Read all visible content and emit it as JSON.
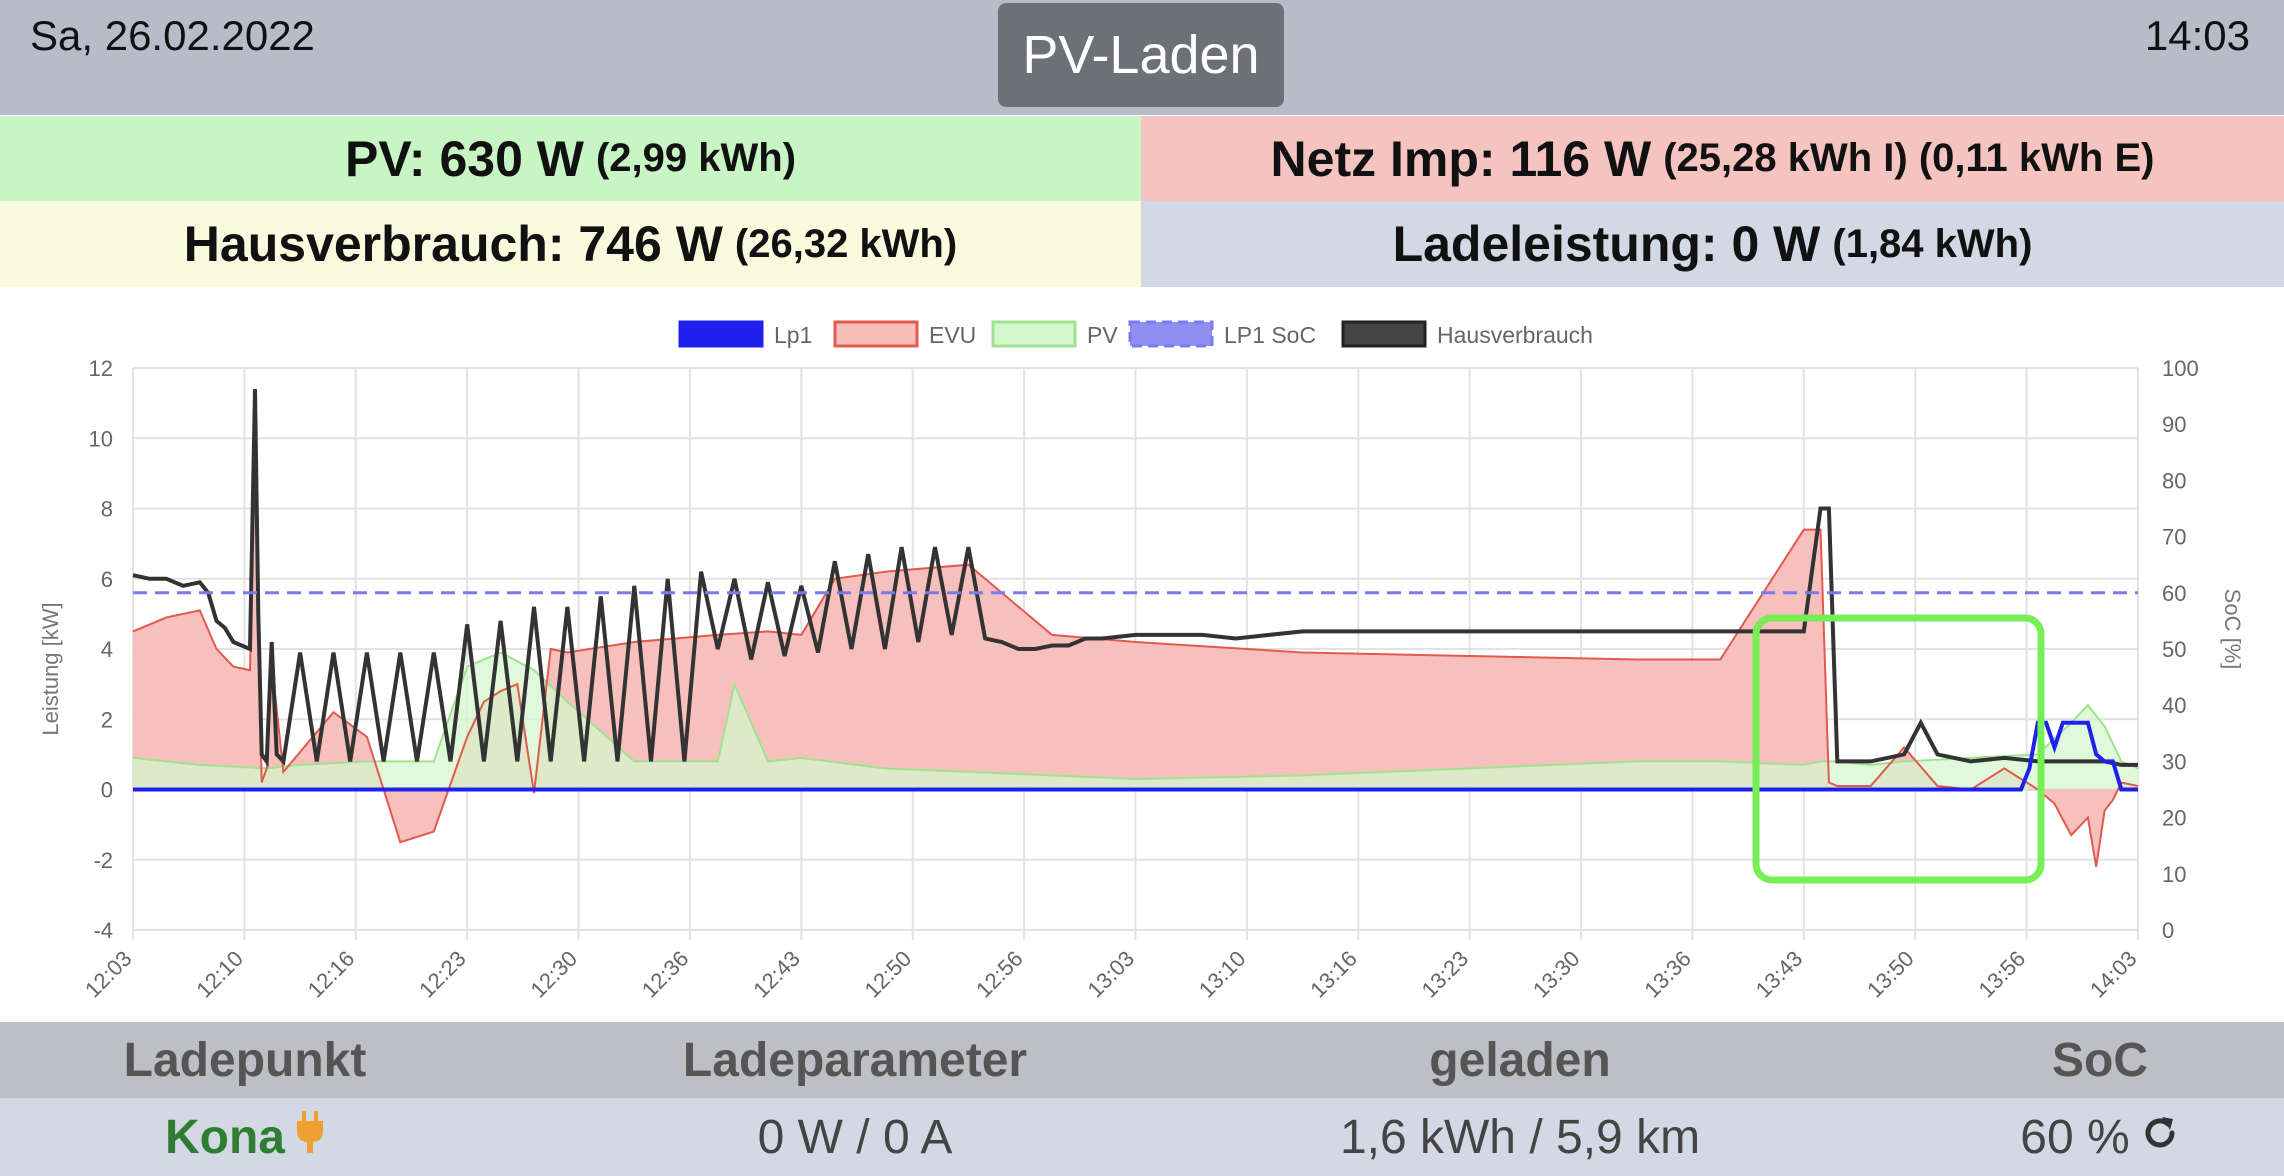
{
  "header": {
    "date": "Sa, 26.02.2022",
    "time": "14:03",
    "mode_button": "PV-Laden"
  },
  "info": {
    "pv_main": "PV: 630 W",
    "pv_sub": "(2,99 kWh)",
    "grid_main": "Netz Imp: 116 W",
    "grid_sub": "(25,28 kWh I) (0,11 kWh E)",
    "house_main": "Hausverbrauch: 746 W",
    "house_sub": "(26,32 kWh)",
    "charge_main": "Ladeleistung: 0 W",
    "charge_sub": "(1,84 kWh)"
  },
  "colors": {
    "lp1": "#2020ee",
    "evu": "#e05a4e",
    "evu_fill": "#f7bdb8",
    "pv": "#9fe38f",
    "pv_fill": "#d4f7cd",
    "soc": "#7a7af0",
    "house": "#333333",
    "highlight": "#77ee55"
  },
  "chart_data": {
    "type": "line",
    "legend": [
      "Lp1",
      "EVU",
      "PV",
      "LP1 SoC",
      "Hausverbrauch"
    ],
    "legend_position": "top",
    "ylabel": "Leistung [kW]",
    "y2label": "SoC [%]",
    "ylim": [
      -4,
      12
    ],
    "y_ticks": [
      -4,
      -2,
      0,
      2,
      4,
      6,
      8,
      10,
      12
    ],
    "y2lim": [
      0,
      100
    ],
    "y2_ticks": [
      0,
      10,
      20,
      30,
      40,
      50,
      60,
      70,
      80,
      90,
      100
    ],
    "x_ticks": [
      "12:03",
      "12:10",
      "12:16",
      "12:23",
      "12:30",
      "12:36",
      "12:43",
      "12:50",
      "12:56",
      "13:03",
      "13:10",
      "13:16",
      "13:23",
      "13:30",
      "13:36",
      "13:43",
      "13:50",
      "13:56",
      "14:03"
    ],
    "x_range_min": [
      0,
      120
    ],
    "grid": true,
    "series": [
      {
        "name": "Hausverbrauch",
        "x": [
          0,
          1,
          2,
          3,
          4,
          4.5,
          5,
          5.5,
          6,
          7,
          7.3,
          7.5,
          7.7,
          8,
          8.3,
          8.6,
          9,
          10,
          11,
          12,
          13,
          14,
          15,
          16,
          17,
          18,
          19,
          20,
          21,
          22,
          23,
          24,
          25,
          26,
          27,
          28,
          29,
          30,
          31,
          32,
          33,
          34,
          35,
          36,
          37,
          38,
          39,
          40,
          41,
          42,
          43,
          44,
          45,
          46,
          47,
          48,
          49,
          50,
          51,
          52,
          53,
          54,
          55,
          56,
          57,
          58,
          60,
          62,
          64,
          66,
          68,
          70,
          75,
          80,
          85,
          90,
          95,
          100,
          101,
          101.5,
          102,
          103,
          104,
          105,
          106,
          107,
          108,
          110,
          112,
          114,
          116,
          118,
          119,
          120
        ],
        "y": [
          6.1,
          6.0,
          6.0,
          5.8,
          5.9,
          5.6,
          4.8,
          4.6,
          4.2,
          4.0,
          11.4,
          5.0,
          1.0,
          0.8,
          4.2,
          1.0,
          0.8,
          3.9,
          0.8,
          3.9,
          0.8,
          3.9,
          0.8,
          3.9,
          0.8,
          3.9,
          0.8,
          4.7,
          0.8,
          4.8,
          0.8,
          5.2,
          0.8,
          5.2,
          0.8,
          5.5,
          0.8,
          5.8,
          0.8,
          6.0,
          0.8,
          6.2,
          4.0,
          6.0,
          3.7,
          5.9,
          3.8,
          5.8,
          3.9,
          6.5,
          4.0,
          6.7,
          4.0,
          6.9,
          4.2,
          6.9,
          4.4,
          6.9,
          4.3,
          4.2,
          4.0,
          4.0,
          4.1,
          4.1,
          4.3,
          4.3,
          4.4,
          4.4,
          4.4,
          4.3,
          4.4,
          4.5,
          4.5,
          4.5,
          4.5,
          4.5,
          4.5,
          4.5,
          8.0,
          8.0,
          0.8,
          0.8,
          0.8,
          0.9,
          1.0,
          1.9,
          1.0,
          0.8,
          0.9,
          0.8,
          0.8,
          0.8,
          0.7,
          0.7
        ]
      },
      {
        "name": "EVU",
        "x": [
          0,
          2,
          4,
          5,
          6,
          7,
          7.3,
          7.5,
          7.7,
          8,
          8.3,
          9,
          12,
          14,
          16,
          18,
          20,
          21,
          22,
          23,
          24,
          25,
          26,
          30,
          35,
          38,
          40,
          42,
          45,
          50,
          55,
          60,
          70,
          80,
          90,
          95,
          100,
          101,
          101.5,
          102,
          104,
          106,
          108,
          110,
          112,
          114,
          115,
          116,
          117,
          117.5,
          118,
          118.5,
          119,
          120
        ],
        "y": [
          4.5,
          4.9,
          5.1,
          4.0,
          3.5,
          3.4,
          10.6,
          4.5,
          0.2,
          0.6,
          3.6,
          0.5,
          2.2,
          1.5,
          -1.5,
          -1.2,
          1.5,
          2.5,
          2.8,
          3.0,
          -0.1,
          4.0,
          3.9,
          4.2,
          4.4,
          4.5,
          4.4,
          6.0,
          6.2,
          6.4,
          4.4,
          4.2,
          3.9,
          3.8,
          3.7,
          3.7,
          7.4,
          7.4,
          0.2,
          0.1,
          0.1,
          1.2,
          0.1,
          0.0,
          0.6,
          0.0,
          -0.4,
          -1.3,
          -0.8,
          -2.2,
          -0.6,
          -0.3,
          0.2,
          0.1
        ]
      },
      {
        "name": "PV",
        "x": [
          0,
          4,
          8,
          10,
          14,
          18,
          20,
          22,
          24,
          26,
          30,
          35,
          36,
          38,
          40,
          45,
          50,
          60,
          70,
          80,
          90,
          95,
          100,
          101,
          102,
          104,
          106,
          110,
          114,
          116,
          117,
          118,
          119,
          120
        ],
        "y": [
          0.9,
          0.7,
          0.6,
          0.7,
          0.8,
          0.8,
          3.5,
          3.9,
          3.4,
          2.5,
          0.8,
          0.8,
          3.0,
          0.8,
          0.9,
          0.6,
          0.5,
          0.3,
          0.4,
          0.6,
          0.8,
          0.8,
          0.7,
          0.8,
          0.8,
          0.7,
          0.8,
          0.9,
          1.0,
          1.9,
          2.4,
          1.8,
          0.8,
          0.6
        ]
      },
      {
        "name": "Lp1",
        "x": [
          0,
          104,
          110,
          111,
          112,
          113,
          113.5,
          114,
          114.5,
          115,
          115.5,
          116,
          117,
          117.5,
          118,
          118.5,
          119,
          120
        ],
        "y": [
          0,
          0,
          0,
          0,
          0,
          0,
          0.6,
          1.9,
          1.9,
          1.2,
          1.9,
          1.9,
          1.9,
          1.0,
          0.8,
          0.8,
          0.0,
          0.0
        ]
      },
      {
        "name": "LP1 SoC",
        "x": [
          0,
          120
        ],
        "y": [
          60,
          60
        ]
      }
    ]
  },
  "table": {
    "headers": [
      "Ladepunkt",
      "Ladeparameter",
      "geladen",
      "SoC"
    ],
    "row": {
      "name": "Kona",
      "params": "0 W / 0 A",
      "charged": "1,6 kWh / 5,9 km",
      "soc": "60 %"
    }
  }
}
